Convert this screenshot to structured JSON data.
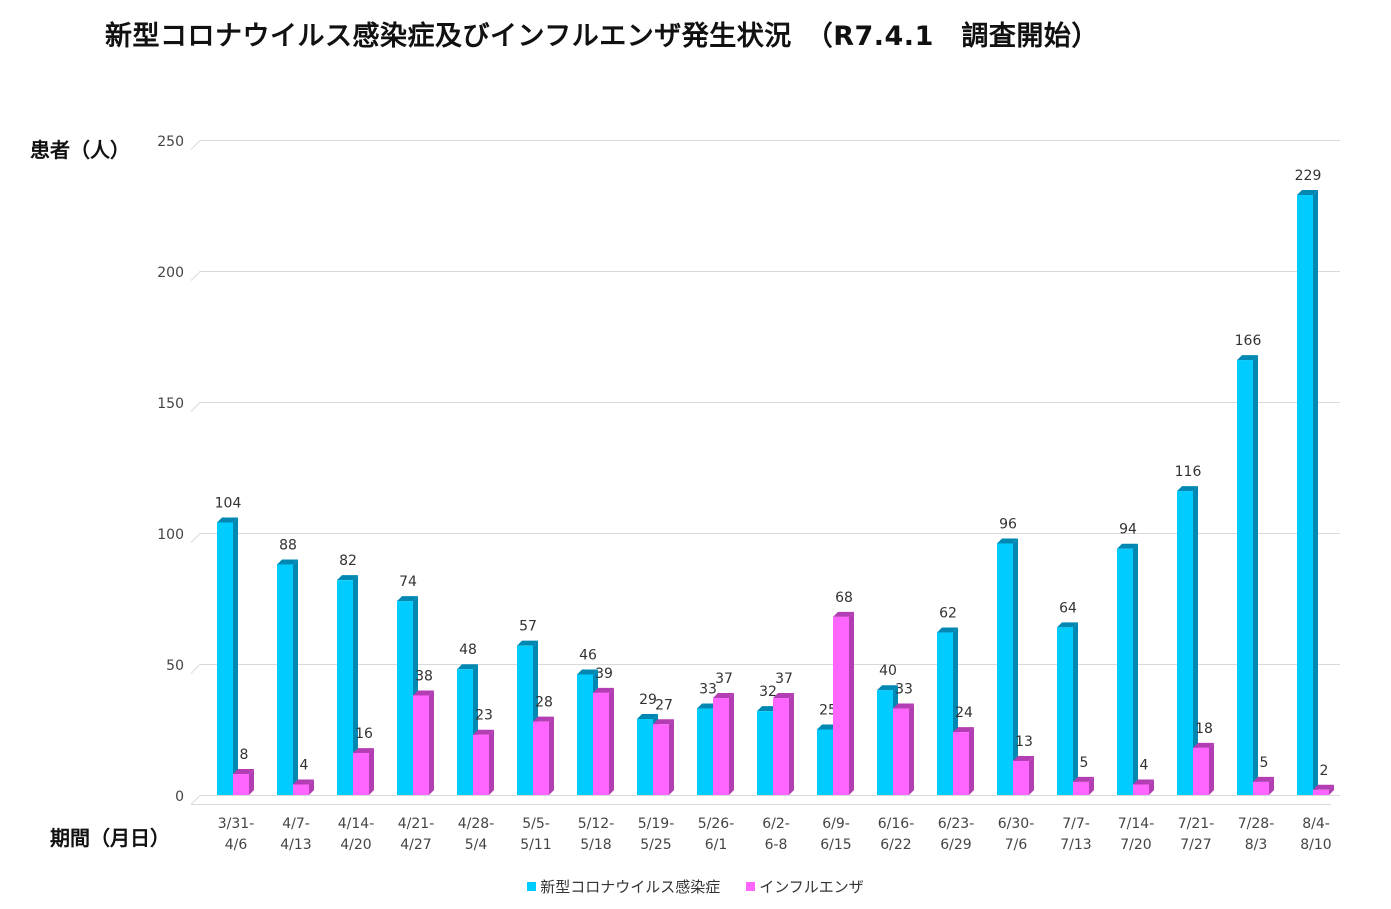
{
  "chart_data": {
    "type": "bar",
    "title": "新型コロナウイルス感染症及びインフルエンザ発生状況　（R7.4.1　調査開始）",
    "ylabel": "患者（人）",
    "xlabel": "期間（月日）",
    "ylim": [
      0,
      250
    ],
    "yticks": [
      0,
      50,
      100,
      150,
      200,
      250
    ],
    "grid": true,
    "legend_position": "bottom",
    "categories": [
      [
        "3/31-",
        "4/6"
      ],
      [
        "4/7-",
        "4/13"
      ],
      [
        "4/14-",
        "4/20"
      ],
      [
        "4/21-",
        "4/27"
      ],
      [
        "4/28-",
        "5/4"
      ],
      [
        "5/5-",
        "5/11"
      ],
      [
        "5/12-",
        "5/18"
      ],
      [
        "5/19-",
        "5/25"
      ],
      [
        "5/26-",
        "6/1"
      ],
      [
        "6/2-",
        "6-8"
      ],
      [
        "6/9-",
        "6/15"
      ],
      [
        "6/16-",
        "6/22"
      ],
      [
        "6/23-",
        "6/29"
      ],
      [
        "6/30-",
        "7/6"
      ],
      [
        "7/7-",
        "7/13"
      ],
      [
        "7/14-",
        "7/20"
      ],
      [
        "7/21-",
        "7/27"
      ],
      [
        "7/28-",
        "8/3"
      ],
      [
        "8/4-",
        "8/10"
      ]
    ],
    "series": [
      {
        "name": "新型コロナウイルス感染症",
        "color": "#00CCFF",
        "side_color": "#0088B3",
        "values": [
          104,
          88,
          82,
          74,
          48,
          57,
          46,
          29,
          33,
          32,
          25,
          40,
          62,
          96,
          64,
          94,
          116,
          166,
          229
        ]
      },
      {
        "name": "インフルエンザ",
        "color": "#FF66FF",
        "side_color": "#B33DB3",
        "values": [
          8,
          4,
          16,
          38,
          23,
          28,
          39,
          27,
          37,
          37,
          68,
          33,
          24,
          13,
          5,
          4,
          18,
          5,
          2
        ]
      }
    ]
  }
}
